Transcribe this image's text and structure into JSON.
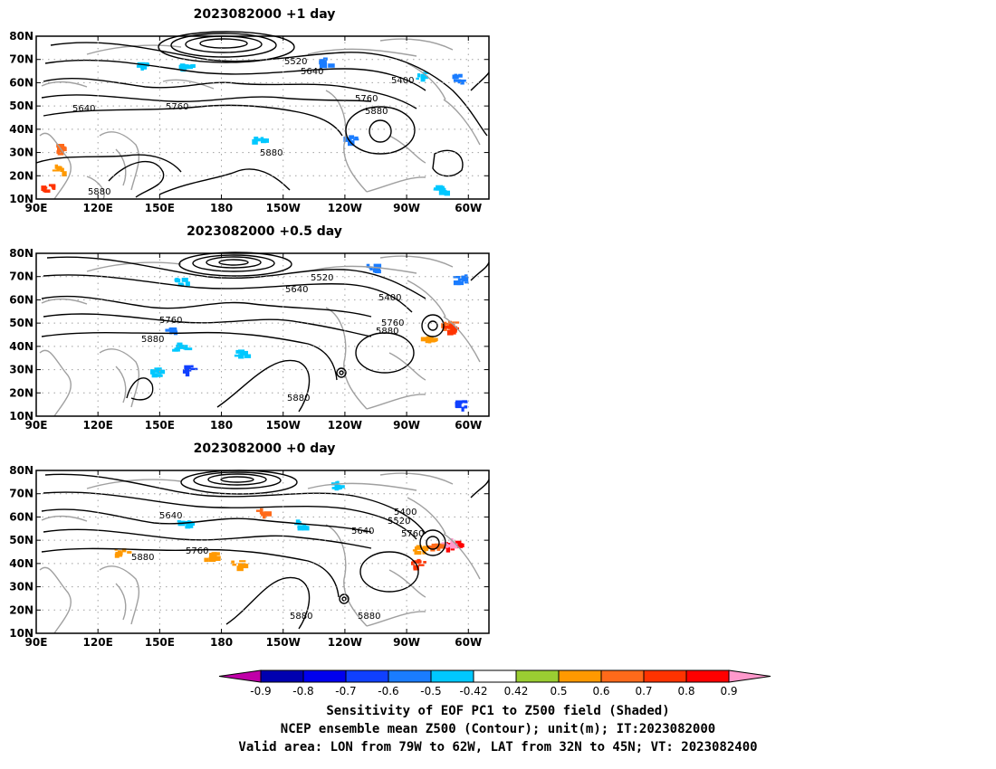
{
  "panels": [
    {
      "title": "2023082000  +1 day",
      "contour_labels": [
        "5520",
        "5640",
        "5400",
        "5640",
        "5760",
        "5760",
        "5880",
        "5880",
        "5880"
      ],
      "sensitivity_patches": [
        {
          "lon": 142,
          "lat": 67,
          "value": -0.5
        },
        {
          "lon": 163,
          "lat": 67,
          "value": -0.5
        },
        {
          "lon": 230,
          "lat": 69,
          "value": -0.6
        },
        {
          "lon": 296,
          "lat": 62,
          "value": -0.6
        },
        {
          "lon": 278,
          "lat": 63,
          "value": -0.5
        },
        {
          "lon": 101,
          "lat": 32,
          "value": 0.6
        },
        {
          "lon": 96,
          "lat": 15,
          "value": 0.7
        },
        {
          "lon": 101,
          "lat": 23,
          "value": 0.5
        },
        {
          "lon": 198,
          "lat": 36,
          "value": -0.5
        },
        {
          "lon": 243,
          "lat": 36,
          "value": -0.6
        },
        {
          "lon": 287,
          "lat": 14,
          "value": -0.5
        }
      ]
    },
    {
      "title": "2023082000  +0.5 day",
      "contour_labels": [
        "5520",
        "5640",
        "5400",
        "5760",
        "5760",
        "5880",
        "5880",
        "5880"
      ],
      "sensitivity_patches": [
        {
          "lon": 161,
          "lat": 68,
          "value": -0.5
        },
        {
          "lon": 156,
          "lat": 47,
          "value": -0.6
        },
        {
          "lon": 160,
          "lat": 40,
          "value": -0.5
        },
        {
          "lon": 165,
          "lat": 30,
          "value": -0.7
        },
        {
          "lon": 147,
          "lat": 29,
          "value": -0.5
        },
        {
          "lon": 190,
          "lat": 37,
          "value": -0.5
        },
        {
          "lon": 254,
          "lat": 74,
          "value": -0.6
        },
        {
          "lon": 296,
          "lat": 69,
          "value": -0.6
        },
        {
          "lon": 290,
          "lat": 49,
          "value": 0.6
        },
        {
          "lon": 292,
          "lat": 48,
          "value": 0.7
        },
        {
          "lon": 280,
          "lat": 43,
          "value": 0.5
        },
        {
          "lon": 296,
          "lat": 15,
          "value": -0.7
        }
      ]
    },
    {
      "title": "2023082000  +0 day",
      "contour_labels": [
        "5640",
        "5880",
        "5760",
        "5640",
        "5520",
        "5400",
        "5760",
        "5880",
        "5880"
      ],
      "sensitivity_patches": [
        {
          "lon": 236,
          "lat": 74,
          "value": -0.5
        },
        {
          "lon": 200,
          "lat": 62,
          "value": 0.6
        },
        {
          "lon": 218,
          "lat": 57,
          "value": -0.5
        },
        {
          "lon": 292,
          "lat": 48,
          "value": 0.8
        },
        {
          "lon": 290,
          "lat": 49,
          "value": 0.9
        },
        {
          "lon": 276,
          "lat": 46,
          "value": 0.5
        },
        {
          "lon": 283,
          "lat": 47,
          "value": 0.6
        },
        {
          "lon": 276,
          "lat": 40,
          "value": 0.7
        },
        {
          "lon": 162,
          "lat": 57,
          "value": -0.5
        },
        {
          "lon": 175,
          "lat": 43,
          "value": 0.5
        },
        {
          "lon": 188,
          "lat": 40,
          "value": 0.5
        },
        {
          "lon": 132,
          "lat": 45,
          "value": 0.5
        }
      ]
    }
  ],
  "axes": {
    "x_ticks": [
      "90E",
      "120E",
      "150E",
      "180",
      "150W",
      "120W",
      "90W",
      "60W"
    ],
    "x_tick_lons": [
      90,
      120,
      150,
      180,
      210,
      240,
      270,
      300
    ],
    "y_ticks": [
      "10N",
      "20N",
      "30N",
      "40N",
      "50N",
      "60N",
      "70N",
      "80N"
    ],
    "y_tick_lats": [
      10,
      20,
      30,
      40,
      50,
      60,
      70,
      80
    ],
    "lon_range": [
      90,
      310
    ],
    "lat_range": [
      10,
      80
    ],
    "grid": "dotted"
  },
  "colorbar": {
    "tick_labels": [
      "-0.9",
      "-0.8",
      "-0.7",
      "-0.6",
      "-0.5",
      "-0.42",
      "0.42",
      "0.5",
      "0.6",
      "0.7",
      "0.8",
      "0.9"
    ],
    "colors": [
      "#c000a8",
      "#0000b0",
      "#0000ee",
      "#1040ff",
      "#1a7cff",
      "#00c8ff",
      "#ffffff",
      "#9acd32",
      "#ff9900",
      "#ff6a1a",
      "#ff3300",
      "#ff0000",
      "#ff99cc"
    ]
  },
  "footer": {
    "line1": "Sensitivity of EOF PC1 to Z500 field (Shaded)",
    "line2": "NCEP ensemble mean Z500 (Contour); unit(m); IT:2023082000",
    "line3": "Valid area: LON from 79W to 62W, LAT from 32N to 45N; VT: 2023082400"
  },
  "colors": {
    "contour": "#000000",
    "coastline": "#a0a0a0",
    "grid": "#a0a0a0"
  }
}
